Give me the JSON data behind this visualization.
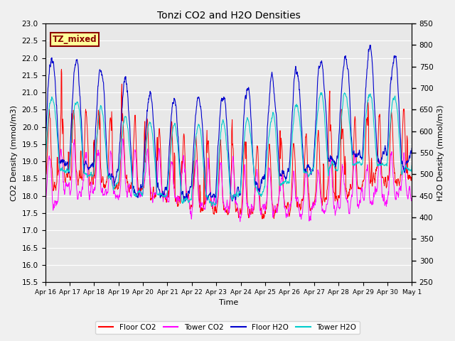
{
  "title": "Tonzi CO2 and H2O Densities",
  "xlabel": "Time",
  "ylabel_left": "CO2 Density (mmol/m3)",
  "ylabel_right": "H2O Density (mmol/m3)",
  "annotation": "TZ_mixed",
  "annotation_color": "#8B0000",
  "annotation_bg": "#FFFF99",
  "annotation_border": "#8B0000",
  "ylim_left": [
    15.5,
    23.0
  ],
  "ylim_right": [
    250,
    850
  ],
  "yticks_left": [
    15.5,
    16.0,
    16.5,
    17.0,
    17.5,
    18.0,
    18.5,
    19.0,
    19.5,
    20.0,
    20.5,
    21.0,
    21.5,
    22.0,
    22.5,
    23.0
  ],
  "yticks_right": [
    250,
    300,
    350,
    400,
    450,
    500,
    550,
    600,
    650,
    700,
    750,
    800,
    850
  ],
  "xtick_labels": [
    "Apr 16",
    "Apr 17",
    "Apr 18",
    "Apr 19",
    "Apr 20",
    "Apr 21",
    "Apr 22",
    "Apr 23",
    "Apr 24",
    "Apr 25",
    "Apr 26",
    "Apr 27",
    "Apr 28",
    "Apr 29",
    "Apr 30",
    "May 1"
  ],
  "legend_labels": [
    "Floor CO2",
    "Tower CO2",
    "Floor H2O",
    "Tower H2O"
  ],
  "line_colors": {
    "floor_co2": "#FF0000",
    "tower_co2": "#FF00FF",
    "floor_h2o": "#0000CD",
    "tower_h2o": "#00CCCC"
  },
  "bg_color": "#E8E8E8",
  "grid_color": "#FFFFFF",
  "fig_bg_color": "#F0F0F0",
  "seed": 12345,
  "n_points": 1440,
  "n_days": 15
}
